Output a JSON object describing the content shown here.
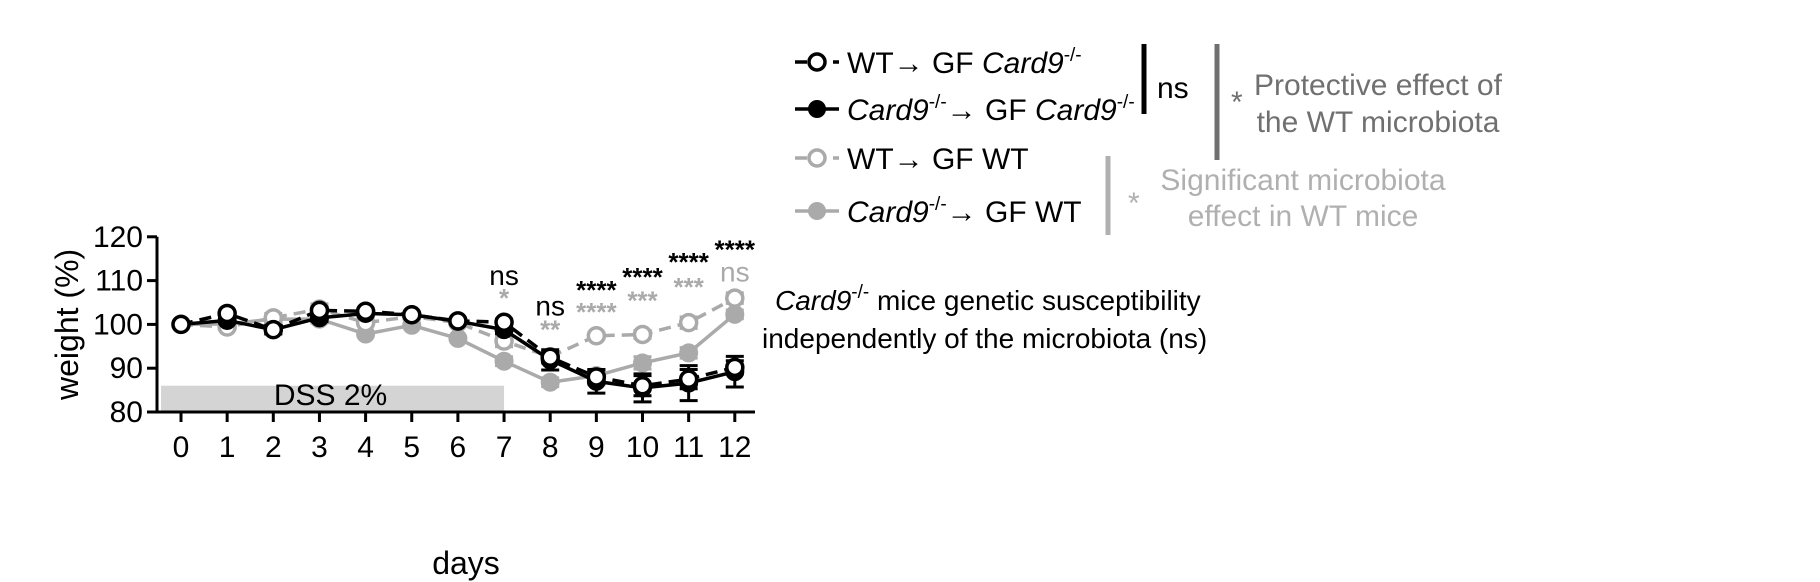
{
  "chart_data": {
    "type": "line",
    "xlabel": "days",
    "ylabel": "weight (%)",
    "xlim": [
      0,
      12
    ],
    "ylim": [
      80,
      120
    ],
    "x": [
      0,
      1,
      2,
      3,
      4,
      5,
      6,
      7,
      8,
      9,
      10,
      11,
      12
    ],
    "x_tick_labels": [
      "0",
      "1",
      "2",
      "3",
      "4",
      "5",
      "6",
      "7",
      "8",
      "9",
      "10",
      "11",
      "12"
    ],
    "y_ticks": [
      80,
      90,
      100,
      110,
      120
    ],
    "y_tick_labels": [
      "80",
      "90",
      "100",
      "110",
      "120"
    ],
    "series": [
      {
        "legend_a": "WT",
        "legend_b": " GF ",
        "legend_c": "Card9",
        "legend_sup_c": "-/-",
        "legend_d": "",
        "color": "#000000",
        "dashed": true,
        "open": true,
        "values": [
          100,
          102.5,
          98.8,
          103.2,
          103,
          102.2,
          100.8,
          100.5,
          92.5,
          88,
          86,
          87.5,
          90.2
        ],
        "errors": [
          0.3,
          0.5,
          0.8,
          0.6,
          0.5,
          0.4,
          0.5,
          0.7,
          1.3,
          1.6,
          2.3,
          2.2,
          1.5
        ]
      },
      {
        "legend_a": "Card9",
        "legend_sup_a": "-/-",
        "legend_b": " GF ",
        "legend_c": "Card9",
        "legend_sup_c": "-/-",
        "legend_d": "",
        "color": "#000000",
        "dashed": false,
        "open": false,
        "values": [
          100,
          100.9,
          98.8,
          101.5,
          102.5,
          102.2,
          100.7,
          98.8,
          91.9,
          87,
          85.5,
          86.6,
          89.2
        ],
        "errors": [
          0.3,
          0.6,
          1.0,
          0.8,
          0.6,
          0.5,
          0.6,
          0.9,
          2.3,
          2.7,
          3.2,
          4.0,
          3.5
        ]
      },
      {
        "legend_a": "WT",
        "legend_b": " GF WT",
        "legend_c": "",
        "legend_d": "",
        "color": "#aaaaaa",
        "dashed": true,
        "open": true,
        "values": [
          100,
          99.4,
          101.5,
          103.5,
          100.4,
          101.8,
          100.4,
          96.2,
          92.6,
          97.4,
          97.7,
          100.4,
          106
        ],
        "errors": [
          0.3,
          0.5,
          1.0,
          1.2,
          0.5,
          0.5,
          0.6,
          1.3,
          1.0,
          0.6,
          0.9,
          1.3,
          1.2
        ]
      },
      {
        "legend_a": "Card9",
        "legend_sup_a": "-/-",
        "legend_b": " GF WT",
        "legend_c": "",
        "legend_d": "",
        "color": "#aaaaaa",
        "dashed": false,
        "open": false,
        "values": [
          100,
          100.1,
          101.2,
          101.2,
          97.8,
          99.8,
          96.8,
          91.6,
          86.8,
          88.3,
          91.2,
          93.5,
          102.3
        ],
        "errors": [
          0.3,
          0.5,
          0.8,
          0.9,
          0.5,
          0.5,
          0.5,
          1.0,
          1.0,
          1.1,
          1.4,
          1.2,
          1.0
        ]
      }
    ],
    "significance": [
      {
        "x": 7,
        "y_rel": 109,
        "text": "ns",
        "color": "#000000",
        "kind": "ns"
      },
      {
        "x": 7,
        "y_rel": 104,
        "text": "*",
        "color": "#aaaaaa",
        "kind": "star"
      },
      {
        "x": 8,
        "y_rel": 102,
        "text": "ns",
        "color": "#000000",
        "kind": "ns"
      },
      {
        "x": 8,
        "y_rel": 96.8,
        "text": "**",
        "color": "#aaaaaa",
        "kind": "star"
      },
      {
        "x": 9,
        "y_rel": 105.8,
        "text": "****",
        "color": "#000000",
        "kind": "star"
      },
      {
        "x": 9,
        "y_rel": 100.8,
        "text": "****",
        "color": "#aaaaaa",
        "kind": "star"
      },
      {
        "x": 10,
        "y_rel": 108.8,
        "text": "****",
        "color": "#000000",
        "kind": "star"
      },
      {
        "x": 10,
        "y_rel": 103.4,
        "text": "***",
        "color": "#aaaaaa",
        "kind": "star"
      },
      {
        "x": 11,
        "y_rel": 112.2,
        "text": "****",
        "color": "#000000",
        "kind": "star"
      },
      {
        "x": 11,
        "y_rel": 106.5,
        "text": "***",
        "color": "#aaaaaa",
        "kind": "star"
      },
      {
        "x": 12,
        "y_rel": 115,
        "text": "****",
        "color": "#000000",
        "kind": "star"
      },
      {
        "x": 12,
        "y_rel": 109.8,
        "text": "ns",
        "color": "#aaaaaa",
        "kind": "ns"
      }
    ],
    "dss_bar": {
      "label": "DSS 2%",
      "x_start": 0,
      "x_end": 7,
      "color": "#d4d4d4"
    },
    "bracket_ns_label": "ns",
    "protective_star": "*",
    "protective_lines": [
      "Protective effect of",
      "the WT microbiota"
    ],
    "protective_color": "#707070",
    "signif_star": "*",
    "signif_lines": [
      "Significant microbiota",
      "effect in WT mice"
    ],
    "signif_color": "#b0b0b0",
    "footnote_italic": "Card9",
    "footnote_sup": "-/-",
    "footnote_line1": " mice genetic susceptibility",
    "footnote_line2": "independently of the microbiota (ns)",
    "grid": false,
    "legend_placement": "right"
  }
}
